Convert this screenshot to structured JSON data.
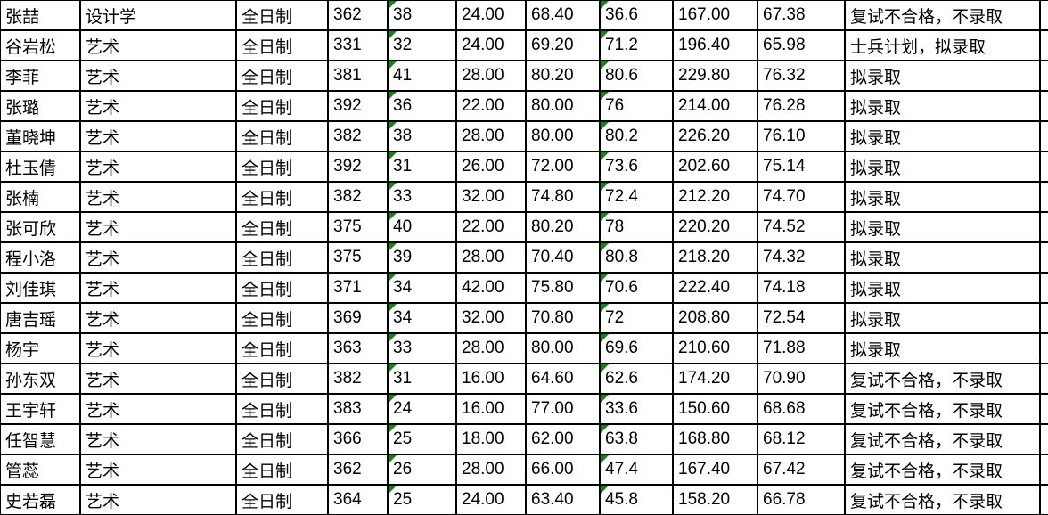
{
  "table": {
    "grid_line_color": "#000000",
    "text_color": "#000000",
    "flag_indicator_color": "#1e7e1e",
    "flag_columns": [
      4,
      7
    ],
    "column_semantics": [
      "student-name",
      "program",
      "study-mode",
      "score-1",
      "score-2",
      "score-3",
      "score-4",
      "score-5",
      "score-6",
      "score-7",
      "admission-result",
      "trailing-blank"
    ],
    "rows": [
      [
        "张喆",
        "设计学",
        "全日制",
        "362",
        "38",
        "24.00",
        "68.40",
        "36.6",
        "167.00",
        "67.38",
        "复试不合格，不录取",
        ""
      ],
      [
        "谷岩松",
        "艺术",
        "全日制",
        "331",
        "32",
        "24.00",
        "69.20",
        "71.2",
        "196.40",
        "65.98",
        "士兵计划，拟录取",
        ""
      ],
      [
        "李菲",
        "艺术",
        "全日制",
        "381",
        "41",
        "28.00",
        "80.20",
        "80.6",
        "229.80",
        "76.32",
        "拟录取",
        ""
      ],
      [
        "张璐",
        "艺术",
        "全日制",
        "392",
        "36",
        "22.00",
        "80.00",
        "76",
        "214.00",
        "76.28",
        "拟录取",
        ""
      ],
      [
        "董晓坤",
        "艺术",
        "全日制",
        "382",
        "38",
        "28.00",
        "80.00",
        "80.2",
        "226.20",
        "76.10",
        "拟录取",
        ""
      ],
      [
        "杜玉倩",
        "艺术",
        "全日制",
        "392",
        "31",
        "26.00",
        "72.00",
        "73.6",
        "202.60",
        "75.14",
        "拟录取",
        ""
      ],
      [
        "张楠",
        "艺术",
        "全日制",
        "382",
        "33",
        "32.00",
        "74.80",
        "72.4",
        "212.20",
        "74.70",
        "拟录取",
        ""
      ],
      [
        "张可欣",
        "艺术",
        "全日制",
        "375",
        "40",
        "22.00",
        "80.20",
        "78",
        "220.20",
        "74.52",
        "拟录取",
        ""
      ],
      [
        "程小洛",
        "艺术",
        "全日制",
        "375",
        "39",
        "28.00",
        "70.40",
        "80.8",
        "218.20",
        "74.32",
        "拟录取",
        ""
      ],
      [
        "刘佳琪",
        "艺术",
        "全日制",
        "371",
        "34",
        "42.00",
        "75.80",
        "70.6",
        "222.40",
        "74.18",
        "拟录取",
        ""
      ],
      [
        "唐吉瑶",
        "艺术",
        "全日制",
        "369",
        "34",
        "32.00",
        "70.80",
        "72",
        "208.80",
        "72.54",
        "拟录取",
        ""
      ],
      [
        "杨宇",
        "艺术",
        "全日制",
        "363",
        "33",
        "28.00",
        "80.00",
        "69.6",
        "210.60",
        "71.88",
        "拟录取",
        ""
      ],
      [
        "孙东双",
        "艺术",
        "全日制",
        "382",
        "31",
        "16.00",
        "64.60",
        "62.6",
        "174.20",
        "70.90",
        "复试不合格，不录取",
        ""
      ],
      [
        "王宇轩",
        "艺术",
        "全日制",
        "383",
        "24",
        "16.00",
        "77.00",
        "33.6",
        "150.60",
        "68.68",
        "复试不合格，不录取",
        ""
      ],
      [
        "任智慧",
        "艺术",
        "全日制",
        "366",
        "25",
        "18.00",
        "62.00",
        "63.8",
        "168.80",
        "68.12",
        "复试不合格，不录取",
        ""
      ],
      [
        "管蕊",
        "艺术",
        "全日制",
        "362",
        "26",
        "28.00",
        "66.00",
        "47.4",
        "167.40",
        "67.42",
        "复试不合格，不录取",
        ""
      ],
      [
        "史若磊",
        "艺术",
        "全日制",
        "364",
        "25",
        "24.00",
        "63.40",
        "45.8",
        "158.20",
        "66.78",
        "复试不合格，不录取",
        ""
      ]
    ]
  }
}
